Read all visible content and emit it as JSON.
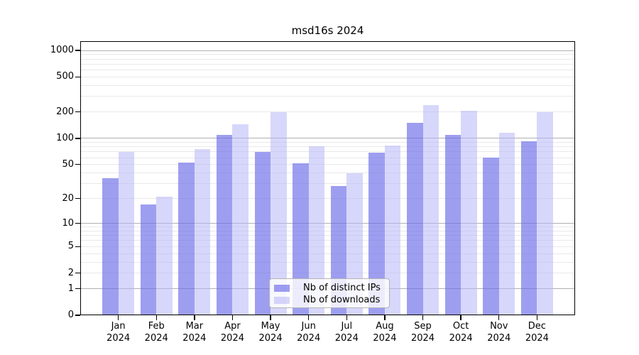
{
  "title": "msd16s 2024",
  "colors": {
    "ips_bar": "rgba(108,108,232,0.66)",
    "downloads_bar": "rgba(182,182,247,0.55)",
    "grid_major": "#b0b0b0",
    "grid_minor": "#e9e9e9",
    "axis": "#000000",
    "legend_border": "#b3b3b3",
    "legend_bg": "rgba(255,255,255,0.8)"
  },
  "y_axis": {
    "ticks": [
      {
        "label": "1000",
        "value": 1000
      },
      {
        "label": "500",
        "value": 500
      },
      {
        "label": "200",
        "value": 200
      },
      {
        "label": "100",
        "value": 100
      },
      {
        "label": "50",
        "value": 50
      },
      {
        "label": "20",
        "value": 20
      },
      {
        "label": "10",
        "value": 10
      },
      {
        "label": "5",
        "value": 5
      },
      {
        "label": "2",
        "value": 2
      },
      {
        "label": "1",
        "value": 1
      },
      {
        "label": "0",
        "value": 0
      }
    ]
  },
  "x_axis": {
    "labels": [
      {
        "line1": "Jan",
        "line2": "2024"
      },
      {
        "line1": "Feb",
        "line2": "2024"
      },
      {
        "line1": "Mar",
        "line2": "2024"
      },
      {
        "line1": "Apr",
        "line2": "2024"
      },
      {
        "line1": "May",
        "line2": "2024"
      },
      {
        "line1": "Jun",
        "line2": "2024"
      },
      {
        "line1": "Jul",
        "line2": "2024"
      },
      {
        "line1": "Aug",
        "line2": "2024"
      },
      {
        "line1": "Sep",
        "line2": "2024"
      },
      {
        "line1": "Oct",
        "line2": "2024"
      },
      {
        "line1": "Nov",
        "line2": "2024"
      },
      {
        "line1": "Dec",
        "line2": "2024"
      }
    ]
  },
  "legend": {
    "items": [
      {
        "label": "Nb of distinct IPs",
        "series": "ips"
      },
      {
        "label": "Nb of downloads",
        "series": "downloads"
      }
    ]
  },
  "chart_data": {
    "type": "bar",
    "title": "msd16s 2024",
    "categories": [
      "Jan 2024",
      "Feb 2024",
      "Mar 2024",
      "Apr 2024",
      "May 2024",
      "Jun 2024",
      "Jul 2024",
      "Aug 2024",
      "Sep 2024",
      "Oct 2024",
      "Nov 2024",
      "Dec 2024"
    ],
    "series": [
      {
        "name": "Nb of distinct IPs",
        "values": [
          35,
          17,
          53,
          110,
          70,
          52,
          28,
          68,
          150,
          110,
          60,
          92
        ]
      },
      {
        "name": "Nb of downloads",
        "values": [
          70,
          21,
          75,
          145,
          198,
          82,
          40,
          83,
          240,
          207,
          116,
          198
        ]
      }
    ],
    "yscale": "log1p",
    "ylim": [
      0,
      1276
    ],
    "y_ticks": [
      0,
      1,
      2,
      5,
      10,
      20,
      50,
      100,
      200,
      500,
      1000
    ],
    "grid": "both",
    "legend_position": "lower center"
  }
}
